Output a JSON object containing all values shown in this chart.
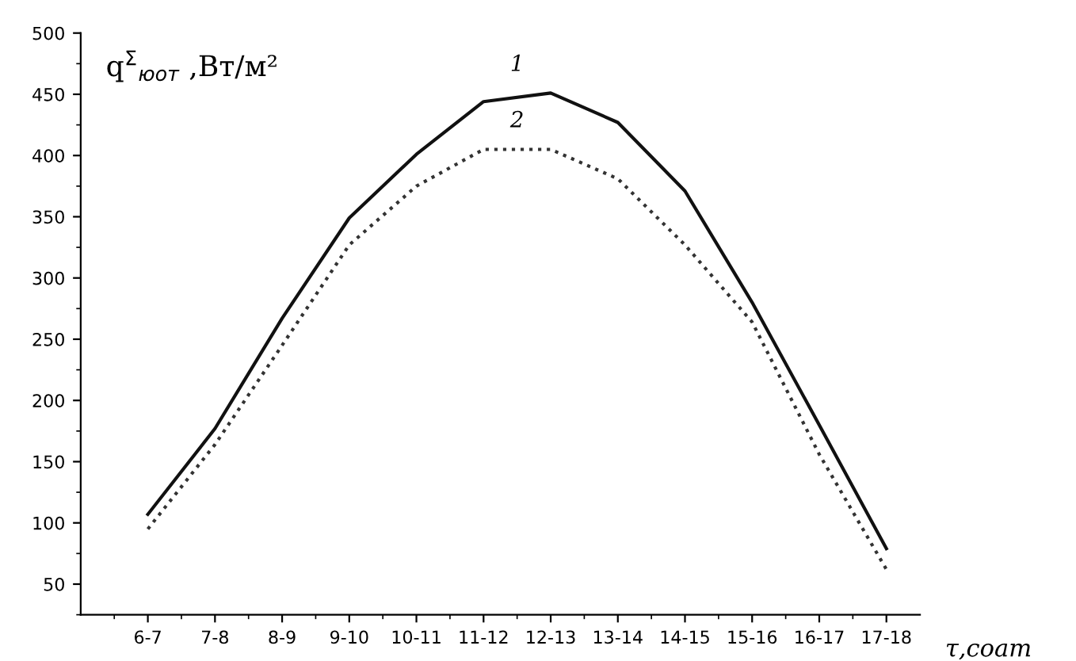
{
  "chart_data": {
    "type": "line",
    "ylabel": "q$^{Σ}$$_{юот}$ ,Вт/м²",
    "xlabel": "τ,соат",
    "categories": [
      "6-7",
      "7-8",
      "8-9",
      "9-10",
      "10-11",
      "11-12",
      "12-13",
      "13-14",
      "14-15",
      "15-16",
      "16-17",
      "17-18"
    ],
    "series": [
      {
        "color": "#111111",
        "line_style": "solid",
        "values": [
          107,
          177,
          267,
          349,
          401,
          444,
          451,
          427,
          371,
          280,
          180,
          79
        ]
      },
      {
        "color": "#333333",
        "line_style": "dotted",
        "values": [
          95,
          164,
          245,
          327,
          375,
          405,
          405,
          381,
          327,
          264,
          156,
          62
        ]
      }
    ],
    "ylim": [
      25,
      500
    ],
    "yticks": [
      50,
      100,
      150,
      200,
      250,
      300,
      350,
      400,
      450,
      500
    ],
    "grid": false,
    "legend": false,
    "marker": "none",
    "annotations": [
      "1",
      "2"
    ]
  }
}
